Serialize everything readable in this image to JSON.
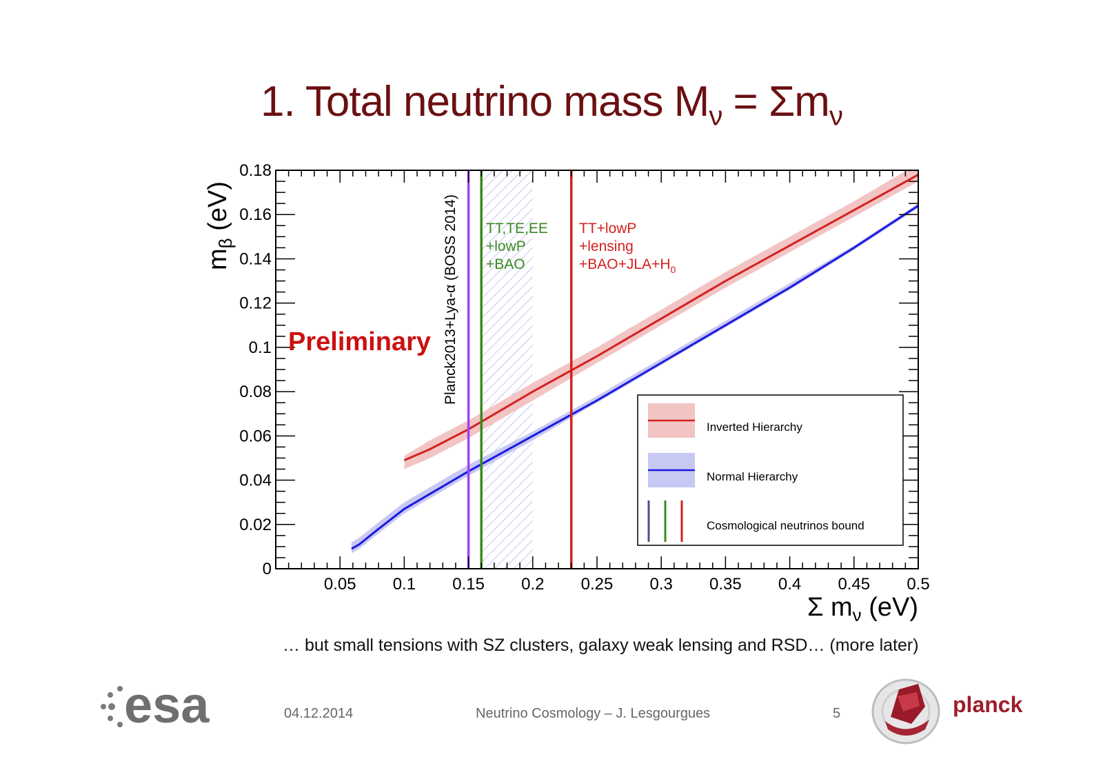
{
  "slide": {
    "title_main": "1. Total neutrino mass M",
    "title_sub": "ν",
    "title_rest": " = Σm",
    "title_sub2": "ν",
    "caption": "… but small tensions with SZ clusters, galaxy weak lensing and RSD… (more later)",
    "date": "04.12.2014",
    "footer_title": "Neutrino Cosmology – J. Lesgourgues",
    "page_number": "5",
    "logo_left": "esa",
    "logo_right": "planck"
  },
  "chart_data": {
    "type": "line",
    "xlabel": "Σ m",
    "xlabel_sub": "ν",
    "xlabel_unit": " (eV)",
    "ylabel": "m",
    "ylabel_sub": "β",
    "ylabel_unit": " (eV)",
    "xlim": [
      0,
      0.5
    ],
    "ylim": [
      0,
      0.18
    ],
    "xticks": [
      0.05,
      0.1,
      0.15,
      0.2,
      0.25,
      0.3,
      0.35,
      0.4,
      0.45,
      0.5
    ],
    "xtick_labels": [
      "0.05",
      "0.1",
      "0.15",
      "0.2",
      "0.25",
      "0.3",
      "0.35",
      "0.4",
      "0.45",
      "0.5"
    ],
    "yticks": [
      0,
      0.02,
      0.04,
      0.06,
      0.08,
      0.1,
      0.12,
      0.14,
      0.16,
      0.18
    ],
    "ytick_labels": [
      "0",
      "0.02",
      "0.04",
      "0.06",
      "0.08",
      "0.1",
      "0.12",
      "0.14",
      "0.16",
      "0.18"
    ],
    "series": [
      {
        "name": "Inverted Hierarchy",
        "color": "#d42020",
        "band_color": "#f2c4c4",
        "x": [
          0.1,
          0.12,
          0.15,
          0.2,
          0.25,
          0.3,
          0.35,
          0.4,
          0.45,
          0.5
        ],
        "y": [
          0.049,
          0.054,
          0.063,
          0.08,
          0.096,
          0.113,
          0.13,
          0.146,
          0.162,
          0.178
        ],
        "band_low": [
          0.045,
          0.05,
          0.059,
          0.076,
          0.093,
          0.11,
          0.127,
          0.143,
          0.159,
          0.175
        ],
        "band_high": [
          0.051,
          0.058,
          0.067,
          0.084,
          0.1,
          0.117,
          0.134,
          0.15,
          0.166,
          0.183
        ]
      },
      {
        "name": "Normal Hierarchy",
        "color": "#1a1ae0",
        "band_color": "#c8c8f4",
        "x": [
          0.059,
          0.065,
          0.08,
          0.1,
          0.15,
          0.2,
          0.25,
          0.3,
          0.35,
          0.4,
          0.45,
          0.5
        ],
        "y": [
          0.009,
          0.011,
          0.018,
          0.027,
          0.044,
          0.06,
          0.076,
          0.093,
          0.11,
          0.127,
          0.145,
          0.164
        ],
        "band_low": [
          0.007,
          0.009,
          0.016,
          0.025,
          0.042,
          0.058,
          0.075,
          0.092,
          0.109,
          0.126,
          0.144,
          0.163
        ],
        "band_high": [
          0.012,
          0.014,
          0.021,
          0.03,
          0.047,
          0.062,
          0.078,
          0.095,
          0.112,
          0.129,
          0.146,
          0.165
        ]
      }
    ],
    "bounds": [
      {
        "x": 0.15,
        "color": "#a040f0",
        "label": "Planck2013+Lya-α (BOSS 2014)"
      },
      {
        "x": 0.16,
        "color": "#3a8a20",
        "label_lines": [
          "TT,TE,EE",
          "+lowP",
          "+BAO"
        ]
      },
      {
        "x": 0.23,
        "color": "#d42020",
        "label_lines": [
          "TT+lowP",
          "+lensing",
          "+BAO+JLA+H"
        ],
        "last_sub": "0"
      }
    ],
    "hatched_region": {
      "x0": 0.16,
      "x1": 0.2,
      "color": "#a0a0f0"
    },
    "annotation": {
      "text": "Preliminary",
      "color": "#cc1010"
    },
    "legend": {
      "placement": "bottom-right",
      "entries": [
        {
          "label": "Inverted Hierarchy"
        },
        {
          "label": "Normal Hierarchy"
        },
        {
          "label": "Cosmological neutrinos bound",
          "colors": [
            "#5a4a8a",
            "#3a8a20",
            "#d42020"
          ]
        }
      ]
    }
  }
}
